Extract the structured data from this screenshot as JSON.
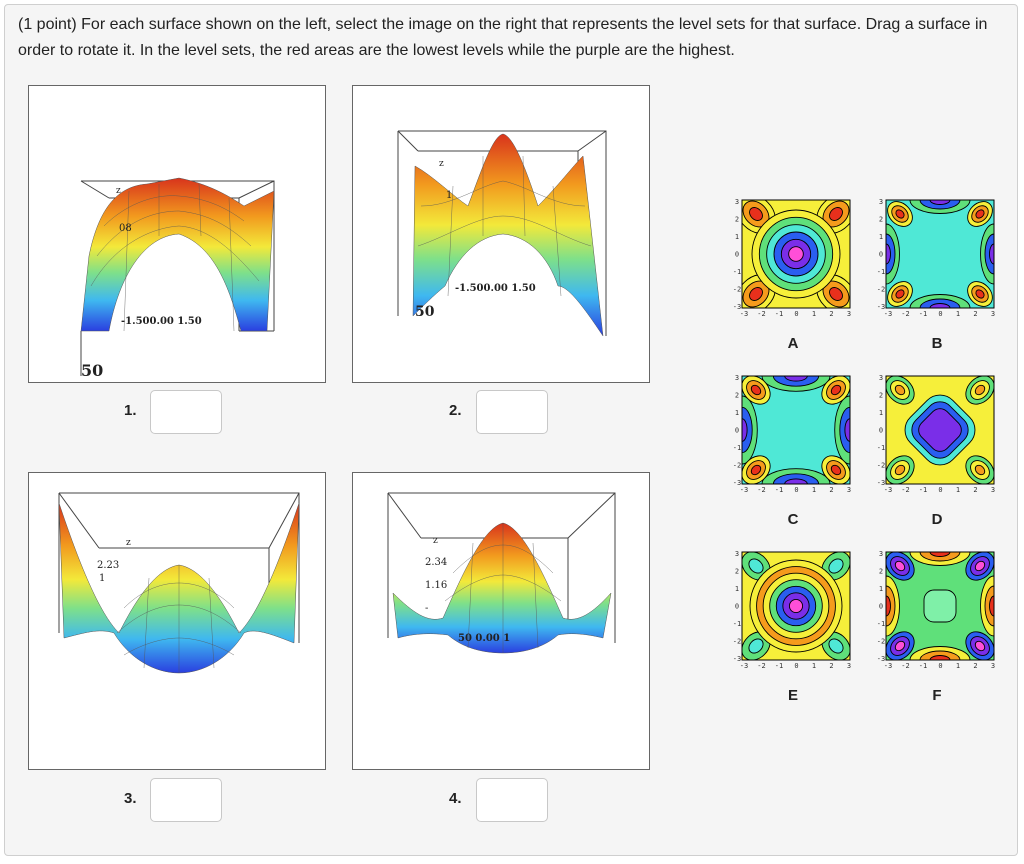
{
  "prompt": {
    "points": "(1 point)",
    "text": "For each surface shown on the left, select the image on the right that represents the level sets for that surface. Drag a surface in order to rotate it. In the level sets, the red areas are the lowest levels while the purple are the highest."
  },
  "surfaces": [
    {
      "number": "1.",
      "answer": "",
      "axis_text": "-1.500.00 1.50",
      "z_label": "z",
      "z_tick": "08",
      "side_ticks": "50"
    },
    {
      "number": "2.",
      "answer": "",
      "axis_text": "-1.500.00 1.50",
      "z_label": "z",
      "z_tick": "1",
      "side_ticks": "50"
    },
    {
      "number": "3.",
      "answer": "",
      "axis_text": "",
      "z_label": "z",
      "z_tick": "2.23",
      "side_ticks": "1"
    },
    {
      "number": "4.",
      "answer": "",
      "axis_text": "50 0.00 1",
      "z_label": "z",
      "z_tick": "2.34",
      "z_tick2": "1.16",
      "side_ticks": "-"
    }
  ],
  "level_sets": [
    {
      "label": "A"
    },
    {
      "label": "B"
    },
    {
      "label": "C"
    },
    {
      "label": "D"
    },
    {
      "label": "E"
    },
    {
      "label": "F"
    }
  ],
  "axis_ticks": {
    "x": [
      "-3",
      "-2",
      "-1",
      "0",
      "1",
      "2",
      "3"
    ],
    "y": [
      "3",
      "2",
      "1",
      "0",
      "-1",
      "-2",
      "-3"
    ]
  },
  "colors": {
    "red": "#e8301c",
    "orange": "#f59b1c",
    "yellow": "#f6ef3a",
    "green": "#5fe07a",
    "cyan": "#4fe8d6",
    "blue": "#2a5ef0",
    "purple": "#7a2ee8",
    "magenta": "#ff4fd8"
  }
}
